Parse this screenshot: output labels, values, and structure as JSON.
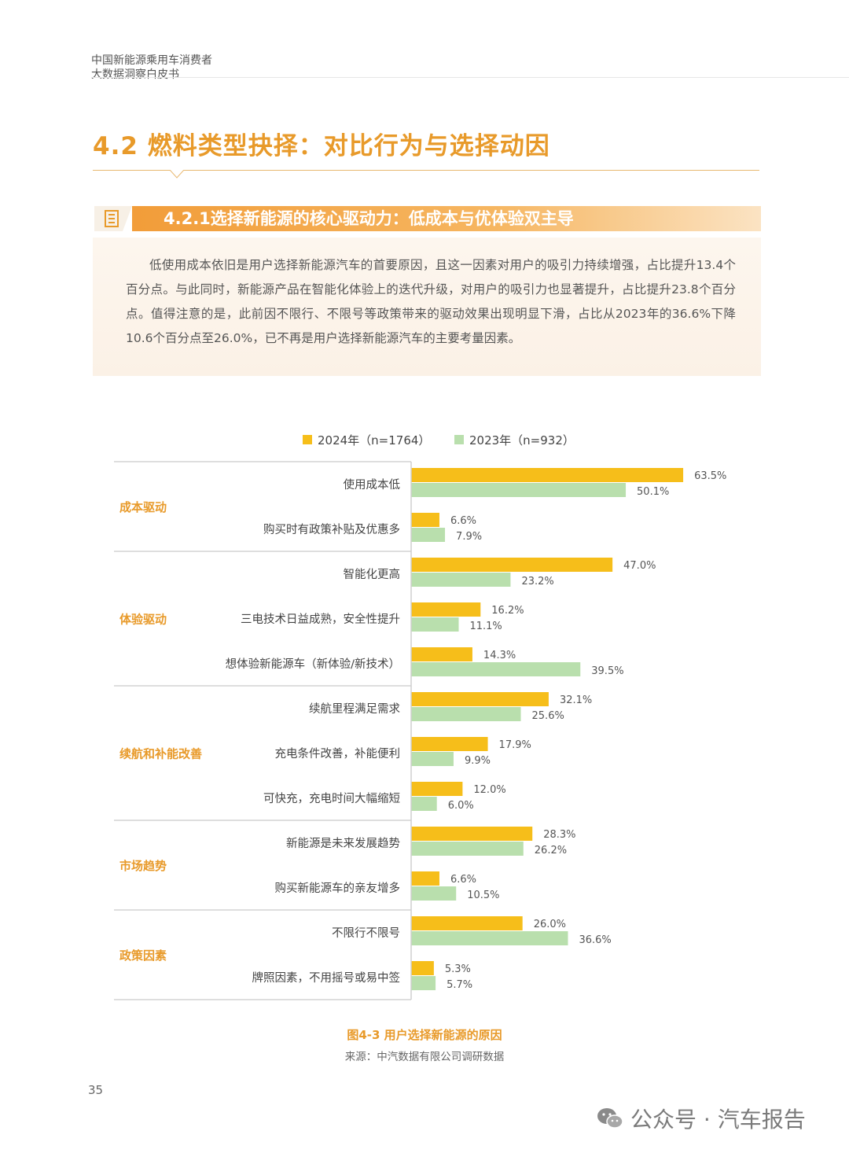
{
  "header": {
    "line1": "中国新能源乘用车消费者",
    "line2": "大数据洞察白皮书"
  },
  "section_title": "4.2 燃料类型抉择：对比行为与选择动因",
  "subsection_title": "4.2.1选择新能源的核心驱动力：低成本与优体验双主导",
  "paragraph": "低使用成本依旧是用户选择新能源汽车的首要原因，且这一因素对用户的吸引力持续增强，占比提升13.4个百分点。与此同时，新能源产品在智能化体验上的迭代升级，对用户的吸引力也显著提升，占比提升23.8个百分点。值得注意的是，此前因不限行、不限号等政策带来的驱动效果出现明显下滑，占比从2023年的36.6%下降10.6个百分点至26.0%，已不再是用户选择新能源汽车的主要考量因素。",
  "colors": {
    "accent": "#e89a2a",
    "bar_2024": "#f6be1a",
    "bar_2023": "#b9dfad",
    "group_label": "#e89a2a"
  },
  "chart_data": {
    "type": "bar",
    "orientation": "horizontal",
    "series": [
      {
        "name": "2024年（n=1764）",
        "color": "#f6be1a"
      },
      {
        "name": "2023年（n=932）",
        "color": "#b9dfad"
      }
    ],
    "groups": [
      {
        "name": "成本驱动",
        "items": [
          {
            "label": "使用成本低",
            "v2024": 63.5,
            "v2023": 50.1
          },
          {
            "label": "购买时有政策补贴及优惠多",
            "v2024": 6.6,
            "v2023": 7.9
          }
        ]
      },
      {
        "name": "体验驱动",
        "items": [
          {
            "label": "智能化更高",
            "v2024": 47.0,
            "v2023": 23.2
          },
          {
            "label": "三电技术日益成熟，安全性提升",
            "v2024": 16.2,
            "v2023": 11.1
          },
          {
            "label": "想体验新能源车（新体验/新技术）",
            "v2024": 14.3,
            "v2023": 39.5
          }
        ]
      },
      {
        "name": "续航和补能改善",
        "items": [
          {
            "label": "续航里程满足需求",
            "v2024": 32.1,
            "v2023": 25.6
          },
          {
            "label": "充电条件改善，补能便利",
            "v2024": 17.9,
            "v2023": 9.9
          },
          {
            "label": "可快充，充电时间大幅缩短",
            "v2024": 12.0,
            "v2023": 6.0
          }
        ]
      },
      {
        "name": "市场趋势",
        "items": [
          {
            "label": "新能源是未来发展趋势",
            "v2024": 28.3,
            "v2023": 26.2
          },
          {
            "label": "购买新能源车的亲友增多",
            "v2024": 6.6,
            "v2023": 10.5
          }
        ]
      },
      {
        "name": "政策因素",
        "items": [
          {
            "label": "不限行不限号",
            "v2024": 26.0,
            "v2023": 36.6
          },
          {
            "label": "牌照因素，不用摇号或易中签",
            "v2024": 5.3,
            "v2023": 5.7
          }
        ]
      }
    ],
    "value_suffix": "%"
  },
  "caption": "图4-3 用户选择新能源的原因",
  "source": "来源：中汽数据有限公司调研数据",
  "page_number": "35",
  "watermark": "公众号 · 汽车报告"
}
